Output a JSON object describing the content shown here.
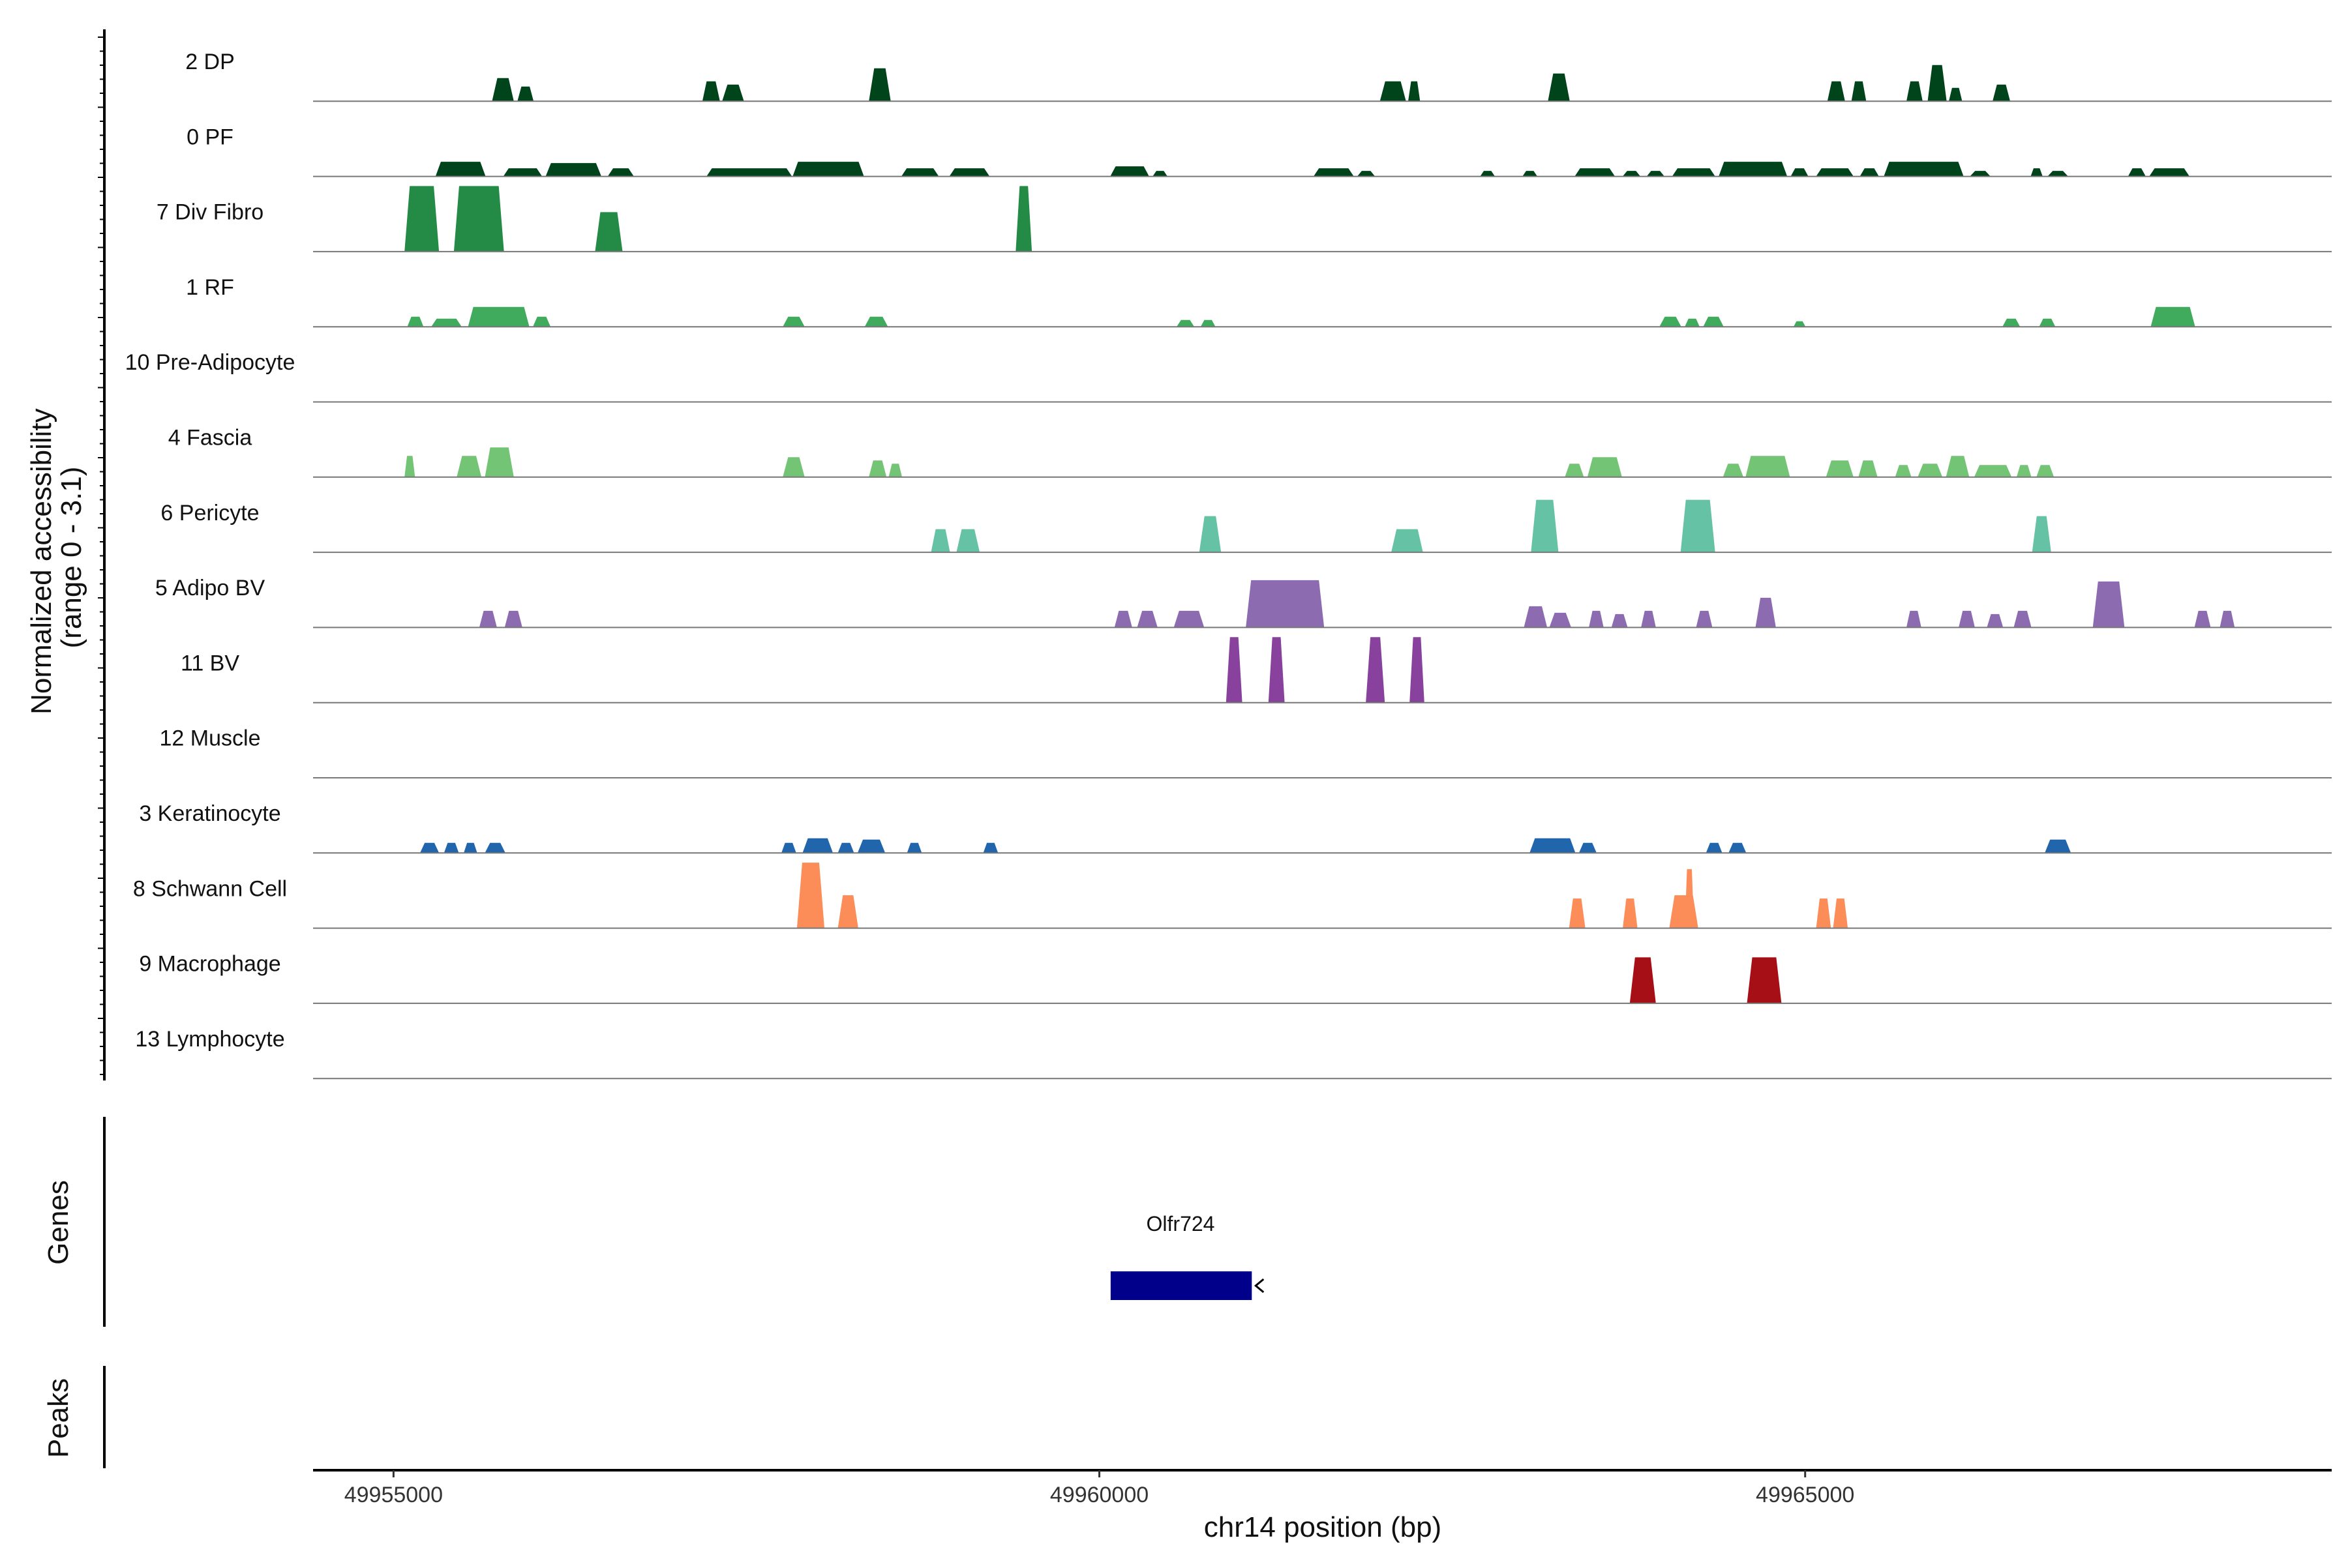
{
  "chart_data": {
    "type": "area",
    "title": "",
    "xlabel": "chr14 position (bp)",
    "ylabel_line1": "Normalized accessibility",
    "ylabel_line2": "(range 0 - 3.1)",
    "ylim": [
      0,
      3.1
    ],
    "xlim": [
      49954430,
      49968730
    ],
    "x_ticks": [
      49955000,
      49960000,
      49965000
    ],
    "x_tick_labels": [
      "49955000",
      "49960000",
      "49965000"
    ],
    "panels": {
      "genes": "Genes",
      "peaks": "Peaks"
    },
    "tracks": [
      {
        "name": "2 DP",
        "color": "#00441b",
        "peaks": [
          [
            49955700,
            49955850,
            0.35
          ],
          [
            49955880,
            49955990,
            0.22
          ],
          [
            49957190,
            49957310,
            0.3
          ],
          [
            49957330,
            49957480,
            0.25
          ],
          [
            49958370,
            49958520,
            0.5
          ],
          [
            49961990,
            49962170,
            0.3
          ],
          [
            49962190,
            49962270,
            0.3
          ],
          [
            49963180,
            49963330,
            0.42
          ],
          [
            49965160,
            49965280,
            0.3
          ],
          [
            49965330,
            49965430,
            0.3
          ],
          [
            49965720,
            49965830,
            0.3
          ],
          [
            49965870,
            49966000,
            0.55
          ],
          [
            49966020,
            49966110,
            0.2
          ],
          [
            49966330,
            49966450,
            0.25
          ]
        ]
      },
      {
        "name": "0 PF",
        "color": "#00441b",
        "peaks": [
          [
            49955300,
            49955650,
            0.22
          ],
          [
            49955780,
            49956050,
            0.12
          ],
          [
            49956080,
            49956470,
            0.2
          ],
          [
            49956520,
            49956700,
            0.12
          ],
          [
            49957220,
            49957820,
            0.12
          ],
          [
            49957830,
            49958330,
            0.22
          ],
          [
            49958600,
            49958860,
            0.12
          ],
          [
            49958940,
            49959220,
            0.12
          ],
          [
            49960080,
            49960350,
            0.15
          ],
          [
            49960380,
            49960480,
            0.08
          ],
          [
            49961520,
            49961800,
            0.12
          ],
          [
            49961830,
            49961950,
            0.08
          ],
          [
            49962700,
            49962800,
            0.08
          ],
          [
            49963000,
            49963100,
            0.08
          ],
          [
            49963370,
            49963650,
            0.12
          ],
          [
            49963710,
            49963830,
            0.08
          ],
          [
            49963880,
            49964000,
            0.08
          ],
          [
            49964060,
            49964360,
            0.12
          ],
          [
            49964390,
            49964870,
            0.22
          ],
          [
            49964900,
            49965020,
            0.12
          ],
          [
            49965080,
            49965340,
            0.12
          ],
          [
            49965390,
            49965520,
            0.12
          ],
          [
            49965560,
            49966120,
            0.22
          ],
          [
            49966170,
            49966310,
            0.08
          ],
          [
            49966600,
            49966680,
            0.12
          ],
          [
            49966720,
            49966860,
            0.08
          ],
          [
            49967290,
            49967410,
            0.12
          ],
          [
            49967440,
            49967720,
            0.12
          ]
        ]
      },
      {
        "name": "7 Div Fibro",
        "color": "#238b45",
        "peaks": [
          [
            49955080,
            49955320,
            1.1
          ],
          [
            49955430,
            49955780,
            1.1
          ],
          [
            49956430,
            49956620,
            0.6
          ],
          [
            49959410,
            49959520,
            1.1
          ]
        ]
      },
      {
        "name": "1 RF",
        "color": "#41ab5d",
        "peaks": [
          [
            49955100,
            49955210,
            0.15
          ],
          [
            49955270,
            49955480,
            0.12
          ],
          [
            49955530,
            49955960,
            0.3
          ],
          [
            49955990,
            49956110,
            0.15
          ],
          [
            49957760,
            49957910,
            0.15
          ],
          [
            49958340,
            49958500,
            0.15
          ],
          [
            49960550,
            49960670,
            0.1
          ],
          [
            49960720,
            49960820,
            0.1
          ],
          [
            49963970,
            49964120,
            0.15
          ],
          [
            49964150,
            49964250,
            0.12
          ],
          [
            49964280,
            49964420,
            0.15
          ],
          [
            49964920,
            49965000,
            0.08
          ],
          [
            49966400,
            49966520,
            0.12
          ],
          [
            49966660,
            49966770,
            0.12
          ],
          [
            49967450,
            49967760,
            0.3
          ]
        ]
      },
      {
        "name": "10 Pre-Adipocyte",
        "color": "#74c476",
        "peaks": []
      },
      {
        "name": "4 Fascia",
        "color": "#74c476",
        "peaks": [
          [
            49955080,
            49955150,
            0.32
          ],
          [
            49955450,
            49955620,
            0.32
          ],
          [
            49955650,
            49955850,
            0.45
          ],
          [
            49957760,
            49957910,
            0.3
          ],
          [
            49958370,
            49958490,
            0.25
          ],
          [
            49958510,
            49958600,
            0.2
          ],
          [
            49963300,
            49963430,
            0.2
          ],
          [
            49963460,
            49963700,
            0.3
          ],
          [
            49964420,
            49964560,
            0.2
          ],
          [
            49964580,
            49964890,
            0.32
          ],
          [
            49965150,
            49965340,
            0.25
          ],
          [
            49965380,
            49965510,
            0.25
          ],
          [
            49965640,
            49965750,
            0.18
          ],
          [
            49965800,
            49965970,
            0.2
          ],
          [
            49966000,
            49966160,
            0.32
          ],
          [
            49966200,
            49966460,
            0.18
          ],
          [
            49966500,
            49966600,
            0.18
          ],
          [
            49966640,
            49966760,
            0.18
          ]
        ]
      },
      {
        "name": "6 Pericyte",
        "color": "#66c2a4",
        "peaks": [
          [
            49958810,
            49958940,
            0.35
          ],
          [
            49958990,
            49959150,
            0.35
          ],
          [
            49960710,
            49960860,
            0.55
          ],
          [
            49962070,
            49962290,
            0.35
          ],
          [
            49963060,
            49963250,
            0.8
          ],
          [
            49964120,
            49964360,
            0.8
          ],
          [
            49966610,
            49966740,
            0.55
          ]
        ]
      },
      {
        "name": "5 Adipo BV",
        "color": "#8c6bb1",
        "peaks": [
          [
            49955610,
            49955730,
            0.25
          ],
          [
            49955790,
            49955910,
            0.25
          ],
          [
            49960110,
            49960230,
            0.25
          ],
          [
            49960270,
            49960410,
            0.25
          ],
          [
            49960530,
            49960740,
            0.25
          ],
          [
            49961040,
            49961590,
            0.72
          ],
          [
            49963010,
            49963170,
            0.32
          ],
          [
            49963190,
            49963340,
            0.22
          ],
          [
            49963470,
            49963570,
            0.25
          ],
          [
            49963630,
            49963740,
            0.2
          ],
          [
            49963840,
            49963940,
            0.25
          ],
          [
            49964230,
            49964340,
            0.25
          ],
          [
            49964650,
            49964790,
            0.45
          ],
          [
            49965720,
            49965820,
            0.25
          ],
          [
            49966090,
            49966200,
            0.25
          ],
          [
            49966290,
            49966400,
            0.2
          ],
          [
            49966480,
            49966600,
            0.25
          ],
          [
            49967040,
            49967260,
            0.7
          ],
          [
            49967760,
            49967870,
            0.25
          ],
          [
            49967940,
            49968040,
            0.25
          ]
        ]
      },
      {
        "name": "11 BV",
        "color": "#88419d",
        "peaks": [
          [
            49960900,
            49961010,
            1.0
          ],
          [
            49961200,
            49961310,
            1.0
          ],
          [
            49961890,
            49962020,
            1.0
          ],
          [
            49962200,
            49962300,
            1.0
          ]
        ]
      },
      {
        "name": "12 Muscle",
        "color": "#3f007d",
        "peaks": []
      },
      {
        "name": "3 Keratinocyte",
        "color": "#2166ac",
        "peaks": [
          [
            49955190,
            49955320,
            0.15
          ],
          [
            49955360,
            49955460,
            0.15
          ],
          [
            49955500,
            49955590,
            0.15
          ],
          [
            49955650,
            49955790,
            0.15
          ],
          [
            49957750,
            49957850,
            0.15
          ],
          [
            49957900,
            49958110,
            0.22
          ],
          [
            49958150,
            49958260,
            0.15
          ],
          [
            49958290,
            49958480,
            0.2
          ],
          [
            49958640,
            49958740,
            0.15
          ],
          [
            49959180,
            49959280,
            0.15
          ],
          [
            49963050,
            49963370,
            0.22
          ],
          [
            49963400,
            49963520,
            0.15
          ],
          [
            49964300,
            49964410,
            0.15
          ],
          [
            49964460,
            49964580,
            0.15
          ],
          [
            49966700,
            49966880,
            0.2
          ]
        ]
      },
      {
        "name": "8 Schwann Cell",
        "color": "#fc8d59",
        "peaks": [
          [
            49957860,
            49958050,
            1.0
          ],
          [
            49958150,
            49958290,
            0.5
          ],
          [
            49963330,
            49963440,
            0.45
          ],
          [
            49963710,
            49963810,
            0.45
          ],
          [
            49964040,
            49964240,
            0.5
          ],
          [
            49964150,
            49964210,
            0.9
          ],
          [
            49965080,
            49965180,
            0.45
          ],
          [
            49965200,
            49965300,
            0.45
          ]
        ]
      },
      {
        "name": "9 Macrophage",
        "color": "#a50f15",
        "peaks": [
          [
            49963760,
            49963940,
            0.7
          ],
          [
            49964590,
            49964830,
            0.7
          ]
        ]
      },
      {
        "name": "13 Lymphocyte",
        "color": "#e31a1c",
        "peaks": []
      }
    ],
    "gene": {
      "name": "Olfr724",
      "start": 49960080,
      "end": 49961080,
      "strand": "-",
      "color": "#00008b"
    }
  }
}
